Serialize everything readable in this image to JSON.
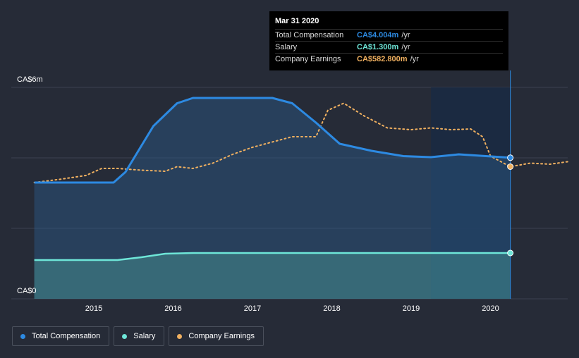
{
  "colors": {
    "total": "#2d8ae2",
    "salary": "#6ee6d8",
    "earnings": "#f0b060",
    "grid": "#3c4250",
    "background": "#262b37"
  },
  "tooltip": {
    "date": "Mar 31 2020",
    "rows": [
      {
        "label": "Total Compensation",
        "value": "CA$4.004m",
        "unit": "/yr"
      },
      {
        "label": "Salary",
        "value": "CA$1.300m",
        "unit": "/yr"
      },
      {
        "label": "Company Earnings",
        "value": "CA$582.800m",
        "unit": "/yr"
      }
    ]
  },
  "legend": {
    "items": [
      {
        "label": "Total Compensation"
      },
      {
        "label": "Salary"
      },
      {
        "label": "Company Earnings"
      }
    ]
  },
  "chart_data": {
    "type": "line",
    "title": "",
    "xlabel": "",
    "ylabel": "",
    "y_labels": [
      "CA$6m",
      "CA$0"
    ],
    "x_ticks": [
      "2015",
      "2016",
      "2017",
      "2018",
      "2019",
      "2020"
    ],
    "ylim": [
      0,
      6
    ],
    "legend_position": "bottom-left",
    "series": [
      {
        "name": "Total Compensation",
        "unit": "CA$ m",
        "points": [
          [
            2014.25,
            3.3
          ],
          [
            2015.25,
            3.3
          ],
          [
            2015.4,
            3.6
          ],
          [
            2015.75,
            4.9
          ],
          [
            2016.05,
            5.55
          ],
          [
            2016.25,
            5.7
          ],
          [
            2017.25,
            5.7
          ],
          [
            2017.5,
            5.55
          ],
          [
            2017.8,
            5.0
          ],
          [
            2018.1,
            4.4
          ],
          [
            2018.5,
            4.2
          ],
          [
            2018.9,
            4.05
          ],
          [
            2019.25,
            4.02
          ],
          [
            2019.6,
            4.1
          ],
          [
            2020.25,
            4.004
          ]
        ]
      },
      {
        "name": "Salary",
        "unit": "CA$ m",
        "points": [
          [
            2014.25,
            1.1
          ],
          [
            2015.3,
            1.1
          ],
          [
            2015.6,
            1.18
          ],
          [
            2015.9,
            1.28
          ],
          [
            2016.25,
            1.3
          ],
          [
            2020.25,
            1.3
          ]
        ]
      },
      {
        "name": "Company Earnings",
        "unit": "CA$ m",
        "points": [
          [
            2014.25,
            3.3
          ],
          [
            2014.6,
            3.4
          ],
          [
            2014.9,
            3.5
          ],
          [
            2015.1,
            3.7
          ],
          [
            2015.3,
            3.7
          ],
          [
            2015.6,
            3.65
          ],
          [
            2015.9,
            3.62
          ],
          [
            2016.05,
            3.75
          ],
          [
            2016.25,
            3.7
          ],
          [
            2016.5,
            3.85
          ],
          [
            2016.75,
            4.1
          ],
          [
            2017.0,
            4.3
          ],
          [
            2017.25,
            4.45
          ],
          [
            2017.5,
            4.6
          ],
          [
            2017.8,
            4.6
          ],
          [
            2017.95,
            5.35
          ],
          [
            2018.15,
            5.55
          ],
          [
            2018.4,
            5.2
          ],
          [
            2018.7,
            4.85
          ],
          [
            2019.0,
            4.8
          ],
          [
            2019.25,
            4.85
          ],
          [
            2019.5,
            4.8
          ],
          [
            2019.75,
            4.82
          ],
          [
            2019.9,
            4.6
          ],
          [
            2020.0,
            4.05
          ],
          [
            2020.25,
            3.75
          ],
          [
            2020.5,
            3.85
          ],
          [
            2020.75,
            3.82
          ],
          [
            2021.0,
            3.9
          ]
        ]
      }
    ],
    "highlight": {
      "from": 2019.25,
      "to": 2020.25
    }
  }
}
